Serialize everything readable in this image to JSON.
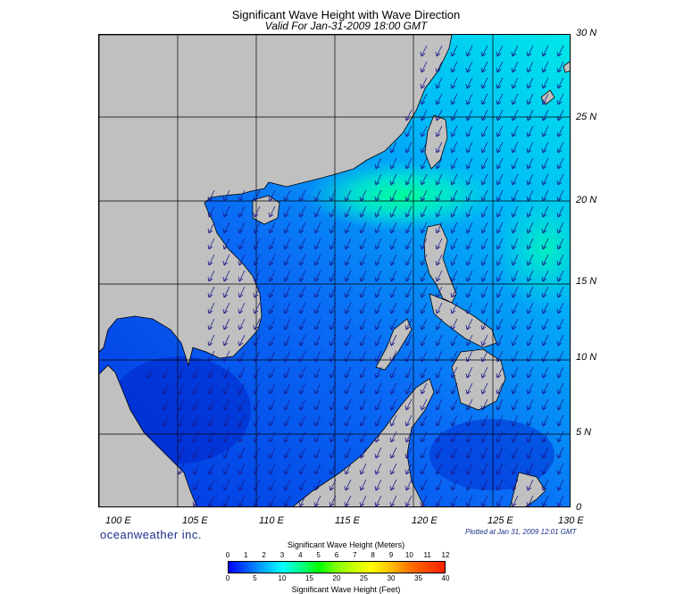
{
  "title": "Significant Wave Height with Wave Direction",
  "subtitle": "Valid For Jan-31-2009 18:00 GMT",
  "lat_labels": [
    "30 N",
    "25 N",
    "20 N",
    "15 N",
    "10 N",
    "5 N",
    "0"
  ],
  "lon_labels": [
    "100 E",
    "105 E",
    "110 E",
    "115 E",
    "120 E",
    "125 E",
    "130 E"
  ],
  "brand": "oceanweather inc.",
  "plotted_at": "Plotted at Jan 31, 2009 12:01 GMT",
  "colorbar": {
    "title_meters": "Significant Wave Height (Meters)",
    "title_feet": "Significant Wave Height (Feet)",
    "meters_ticks": [
      "0",
      "1",
      "2",
      "3",
      "4",
      "5",
      "6",
      "7",
      "8",
      "9",
      "10",
      "11",
      "12"
    ],
    "feet_ticks": [
      "0",
      "5",
      "10",
      "15",
      "20",
      "25",
      "30",
      "35",
      "40"
    ]
  },
  "colors": {
    "land": "#c0c0c0",
    "sea_low": "#0055ff",
    "sea_high": "#00ffcc",
    "arrow": "#1a1a8c"
  }
}
